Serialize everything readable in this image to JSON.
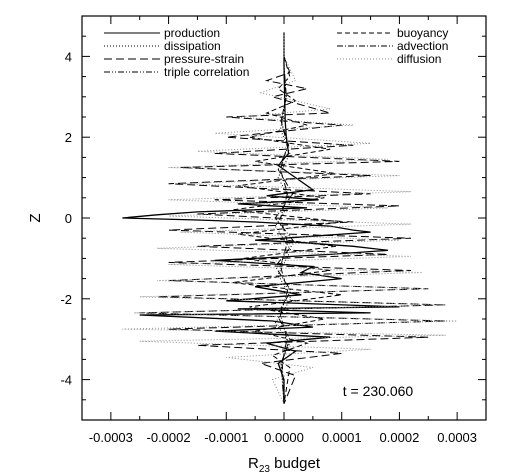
{
  "chart_data": {
    "type": "line",
    "xlabel": "R",
    "xlabel_sub": "23",
    "xlabel_tail": " budget",
    "ylabel": "Z",
    "annotation": "t = 230.060",
    "xlim": [
      -0.00035,
      0.00035
    ],
    "ylim": [
      -5,
      5
    ],
    "x_ticks": [
      -0.0003,
      -0.0002,
      -0.0001,
      0.0,
      0.0001,
      0.0002,
      0.0003
    ],
    "x_tick_labels": [
      "-0.0003",
      "-0.0002",
      "-0.0001",
      "0.0000",
      "0.0001",
      "0.0002",
      "0.0003"
    ],
    "y_ticks": [
      -4,
      -2,
      0,
      2,
      4
    ],
    "y_tick_labels": [
      "-4",
      "-2",
      "0",
      "2",
      "4"
    ],
    "legend_placement": "top",
    "series": [
      {
        "name": "production",
        "style": "solid",
        "color": "#000000",
        "points": [
          [
            0,
            4.6
          ],
          [
            0,
            3.8
          ],
          [
            1e-06,
            3.0
          ],
          [
            2e-06,
            2.4
          ],
          [
            4e-06,
            2.0
          ],
          [
            8e-06,
            1.6
          ],
          [
            -1e-05,
            1.3
          ],
          [
            2e-05,
            1.0
          ],
          [
            5e-05,
            0.7
          ],
          [
            -3e-05,
            0.55
          ],
          [
            6e-05,
            0.45
          ],
          [
            -8e-05,
            0.35
          ],
          [
            4e-05,
            0.25
          ],
          [
            -0.00015,
            0.15
          ],
          [
            -0.00022,
            0.08
          ],
          [
            -0.00028,
            0.0
          ],
          [
            -0.00015,
            -0.05
          ],
          [
            -5e-05,
            -0.1
          ],
          [
            8e-05,
            -0.2
          ],
          [
            0.00012,
            -0.3
          ],
          [
            0.00015,
            -0.35
          ],
          [
            5e-05,
            -0.45
          ],
          [
            -5e-05,
            -0.55
          ],
          [
            2e-05,
            -0.6
          ],
          [
            0.00012,
            -0.7
          ],
          [
            0.00018,
            -0.8
          ],
          [
            8e-05,
            -0.9
          ],
          [
            -0.00012,
            -1.05
          ],
          [
            5e-05,
            -1.2
          ],
          [
            3e-05,
            -1.35
          ],
          [
            0.0001,
            -1.5
          ],
          [
            -5e-05,
            -1.7
          ],
          [
            3e-05,
            -1.9
          ],
          [
            -0.0001,
            -2.05
          ],
          [
            0.0002,
            -2.2
          ],
          [
            -8e-05,
            -2.25
          ],
          [
            0.00015,
            -2.35
          ],
          [
            -0.00025,
            -2.4
          ],
          [
            -2e-05,
            -2.55
          ],
          [
            5e-05,
            -2.7
          ],
          [
            -0.00012,
            -2.8
          ],
          [
            8e-05,
            -2.95
          ],
          [
            -3e-05,
            -3.1
          ],
          [
            2e-05,
            -3.3
          ],
          [
            -1e-05,
            -3.6
          ],
          [
            0,
            -4.0
          ],
          [
            0,
            -4.6
          ]
        ]
      },
      {
        "name": "dissipation",
        "style": "dotted",
        "color": "#000000",
        "points": [
          [
            0,
            4.6
          ],
          [
            0,
            3.5
          ],
          [
            3e-06,
            2.8
          ],
          [
            -6e-06,
            2.2
          ],
          [
            1e-05,
            1.6
          ],
          [
            -1e-05,
            1.0
          ],
          [
            1.2e-05,
            0.4
          ],
          [
            -1.5e-05,
            -0.2
          ],
          [
            1.2e-05,
            -0.8
          ],
          [
            -1e-05,
            -1.4
          ],
          [
            1.2e-05,
            -2.0
          ],
          [
            -1.5e-05,
            -2.6
          ],
          [
            1e-05,
            -3.1
          ],
          [
            -5e-06,
            -3.6
          ],
          [
            0,
            -4.6
          ]
        ]
      },
      {
        "name": "pressure-strain",
        "style": "longdash",
        "color": "#000000",
        "points": [
          [
            0,
            4.6
          ],
          [
            0,
            4.0
          ],
          [
            1e-05,
            3.6
          ],
          [
            -3e-05,
            3.4
          ],
          [
            4e-05,
            3.2
          ],
          [
            -2e-05,
            3.0
          ],
          [
            8e-05,
            2.6
          ],
          [
            -0.0001,
            2.5
          ],
          [
            0.0001,
            2.3
          ],
          [
            -0.0001,
            2.0
          ],
          [
            0.00012,
            1.8
          ],
          [
            -0.00012,
            1.6
          ],
          [
            0.0002,
            1.4
          ],
          [
            -0.00018,
            1.25
          ],
          [
            0.00015,
            1.05
          ],
          [
            -0.0002,
            0.85
          ],
          [
            0.00015,
            0.6
          ],
          [
            -0.00012,
            0.45
          ],
          [
            0.0002,
            0.3
          ],
          [
            -0.00015,
            0.1
          ],
          [
            0.00012,
            -0.1
          ],
          [
            -0.0002,
            -0.3
          ],
          [
            0.00022,
            -0.5
          ],
          [
            -0.00015,
            -0.7
          ],
          [
            0.00018,
            -0.9
          ],
          [
            -0.0002,
            -1.1
          ],
          [
            0.00022,
            -1.3
          ],
          [
            -0.0002,
            -1.55
          ],
          [
            0.00025,
            -1.75
          ],
          [
            -0.00022,
            -1.95
          ],
          [
            0.00028,
            -2.15
          ],
          [
            -0.00025,
            -2.35
          ],
          [
            0.00028,
            -2.55
          ],
          [
            -0.0002,
            -2.75
          ],
          [
            0.00025,
            -2.95
          ],
          [
            -0.00015,
            -3.15
          ],
          [
            0.0001,
            -3.35
          ],
          [
            -4e-05,
            -3.6
          ],
          [
            2e-05,
            -3.9
          ],
          [
            0,
            -4.6
          ]
        ]
      },
      {
        "name": "triple correlation",
        "style": "dashdotdot",
        "color": "#000000",
        "points": [
          [
            0,
            4.6
          ],
          [
            0,
            3.8
          ],
          [
            4e-06,
            3.0
          ],
          [
            -5e-06,
            2.4
          ],
          [
            8e-06,
            1.8
          ],
          [
            -1e-05,
            1.2
          ],
          [
            1.5e-05,
            0.6
          ],
          [
            -1.5e-05,
            0.0
          ],
          [
            1.8e-05,
            -0.6
          ],
          [
            -1.5e-05,
            -1.2
          ],
          [
            1.2e-05,
            -1.8
          ],
          [
            -1.2e-05,
            -2.4
          ],
          [
            1e-05,
            -3.0
          ],
          [
            -5e-06,
            -3.6
          ],
          [
            0,
            -4.6
          ]
        ]
      },
      {
        "name": "buoyancy",
        "style": "dashed",
        "color": "#000000",
        "points": [
          [
            0,
            4.6
          ],
          [
            0,
            4.0
          ],
          [
            1e-05,
            3.5
          ],
          [
            -1e-05,
            3.2
          ],
          [
            2e-05,
            2.9
          ],
          [
            -3e-05,
            2.6
          ],
          [
            4e-05,
            2.3
          ],
          [
            -6e-05,
            2.0
          ],
          [
            8e-05,
            1.7
          ],
          [
            -5e-05,
            1.4
          ],
          [
            9e-05,
            1.1
          ],
          [
            -8e-05,
            0.8
          ],
          [
            7e-05,
            0.5
          ],
          [
            -9e-05,
            0.2
          ],
          [
            0.0001,
            -0.1
          ],
          [
            -8e-05,
            -0.4
          ],
          [
            9e-05,
            -0.7
          ],
          [
            -7e-05,
            -1.0
          ],
          [
            8e-05,
            -1.3
          ],
          [
            -9e-05,
            -1.6
          ],
          [
            0.0001,
            -1.9
          ],
          [
            -6e-05,
            -2.2
          ],
          [
            7e-05,
            -2.5
          ],
          [
            -5e-05,
            -2.8
          ],
          [
            4e-05,
            -3.1
          ],
          [
            -2e-05,
            -3.4
          ],
          [
            1e-05,
            -3.7
          ],
          [
            0,
            -4.6
          ]
        ]
      },
      {
        "name": "advection",
        "style": "dashdot",
        "color": "#000000",
        "points": [
          [
            0,
            4.6
          ],
          [
            0,
            3.6
          ],
          [
            4e-06,
            3.0
          ],
          [
            -5e-06,
            2.4
          ],
          [
            6e-06,
            1.8
          ],
          [
            -6e-06,
            1.2
          ],
          [
            6e-06,
            0.6
          ],
          [
            -6e-06,
            0.0
          ],
          [
            6e-06,
            -0.6
          ],
          [
            -6e-06,
            -1.2
          ],
          [
            6e-06,
            -1.8
          ],
          [
            -6e-06,
            -2.4
          ],
          [
            5e-06,
            -3.0
          ],
          [
            -3e-06,
            -3.6
          ],
          [
            0,
            -4.6
          ]
        ]
      },
      {
        "name": "diffusion",
        "style": "dotted-gray",
        "color": "#8c8c8c",
        "points": [
          [
            0,
            4.6
          ],
          [
            0,
            4.0
          ],
          [
            2e-05,
            3.4
          ],
          [
            -4e-05,
            3.1
          ],
          [
            8e-05,
            2.7
          ],
          [
            -8e-05,
            2.5
          ],
          [
            0.00012,
            2.3
          ],
          [
            -0.00012,
            2.1
          ],
          [
            0.00015,
            1.85
          ],
          [
            -0.00015,
            1.65
          ],
          [
            0.00018,
            1.45
          ],
          [
            -0.0002,
            1.25
          ],
          [
            0.0002,
            1.05
          ],
          [
            -0.00018,
            0.85
          ],
          [
            0.00022,
            0.65
          ],
          [
            -0.0002,
            0.45
          ],
          [
            0.00018,
            0.25
          ],
          [
            -0.0002,
            0.05
          ],
          [
            0.00022,
            -0.15
          ],
          [
            -0.00018,
            -0.35
          ],
          [
            0.0002,
            -0.55
          ],
          [
            -0.00022,
            -0.75
          ],
          [
            0.00022,
            -0.95
          ],
          [
            -0.0002,
            -1.15
          ],
          [
            0.00024,
            -1.35
          ],
          [
            -0.00022,
            -1.55
          ],
          [
            0.00025,
            -1.75
          ],
          [
            -0.00025,
            -1.95
          ],
          [
            0.00028,
            -2.15
          ],
          [
            -0.00026,
            -2.35
          ],
          [
            0.0003,
            -2.55
          ],
          [
            -0.00028,
            -2.75
          ],
          [
            0.00028,
            -2.9
          ],
          [
            -0.00025,
            -3.05
          ],
          [
            0.00015,
            -3.25
          ],
          [
            -0.0001,
            -3.45
          ],
          [
            5e-05,
            -3.7
          ],
          [
            -2e-05,
            -4.0
          ],
          [
            0,
            -4.6
          ]
        ]
      }
    ]
  }
}
